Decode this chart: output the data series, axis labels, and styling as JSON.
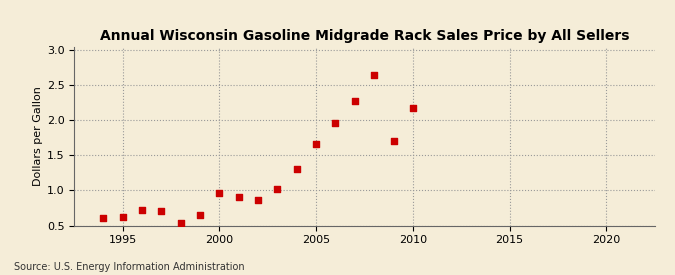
{
  "title": "Annual Wisconsin Gasoline Midgrade Rack Sales Price by All Sellers",
  "ylabel": "Dollars per Gallon",
  "source": "Source: U.S. Energy Information Administration",
  "background_color": "#f5edd8",
  "years": [
    1994,
    1995,
    1996,
    1997,
    1998,
    1999,
    2000,
    2001,
    2002,
    2003,
    2004,
    2005,
    2006,
    2007,
    2008,
    2009,
    2010
  ],
  "values": [
    0.6,
    0.62,
    0.72,
    0.7,
    0.53,
    0.65,
    0.97,
    0.91,
    0.86,
    1.02,
    1.3,
    1.66,
    1.96,
    2.27,
    2.65,
    1.71,
    2.18
  ],
  "marker_color": "#cc0000",
  "marker_size": 4,
  "xlim": [
    1992.5,
    2022.5
  ],
  "ylim": [
    0.5,
    3.05
  ],
  "xticks": [
    1995,
    2000,
    2005,
    2010,
    2015,
    2020
  ],
  "yticks": [
    0.5,
    1.0,
    1.5,
    2.0,
    2.5,
    3.0
  ],
  "title_fontsize": 10,
  "label_fontsize": 8,
  "source_fontsize": 7
}
